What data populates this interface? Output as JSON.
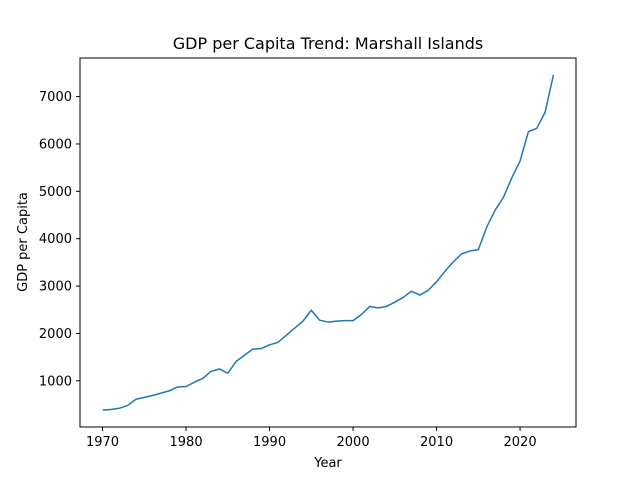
{
  "chart_data": {
    "type": "line",
    "title": "GDP per Capita Trend: Marshall Islands",
    "xlabel": "Year",
    "ylabel": "GDP per Capita",
    "xlim": [
      1967.3,
      2026.7
    ],
    "ylim": [
      25,
      7815
    ],
    "xticks": [
      1970,
      1980,
      1990,
      2000,
      2010,
      2020
    ],
    "yticks": [
      1000,
      2000,
      3000,
      4000,
      5000,
      6000,
      7000
    ],
    "grid": false,
    "line_color": "#1f77b4",
    "series": [
      {
        "x": [
          1970,
          1971,
          1972,
          1973,
          1974,
          1975,
          1976,
          1977,
          1978,
          1979,
          1980,
          1981,
          1982,
          1983,
          1984,
          1985,
          1986,
          1987,
          1988,
          1989,
          1990,
          1991,
          1992,
          1993,
          1994,
          1995,
          1996,
          1997,
          1998,
          1999,
          2000,
          2001,
          2002,
          2003,
          2004,
          2005,
          2006,
          2007,
          2008,
          2009,
          2010,
          2011,
          2012,
          2013,
          2014,
          2015,
          2016,
          2017,
          2018,
          2019,
          2020,
          2021,
          2022,
          2023,
          2024
        ],
        "values": [
          380,
          395,
          420,
          480,
          610,
          650,
          690,
          740,
          790,
          870,
          880,
          970,
          1050,
          1200,
          1250,
          1160,
          1410,
          1540,
          1670,
          1680,
          1760,
          1810,
          1960,
          2110,
          2260,
          2490,
          2280,
          2240,
          2260,
          2270,
          2270,
          2400,
          2570,
          2540,
          2570,
          2660,
          2760,
          2890,
          2810,
          2910,
          3090,
          3310,
          3510,
          3680,
          3740,
          3770,
          4240,
          4600,
          4870,
          5280,
          5640,
          6260,
          6330,
          6670,
          7460
        ]
      }
    ]
  }
}
